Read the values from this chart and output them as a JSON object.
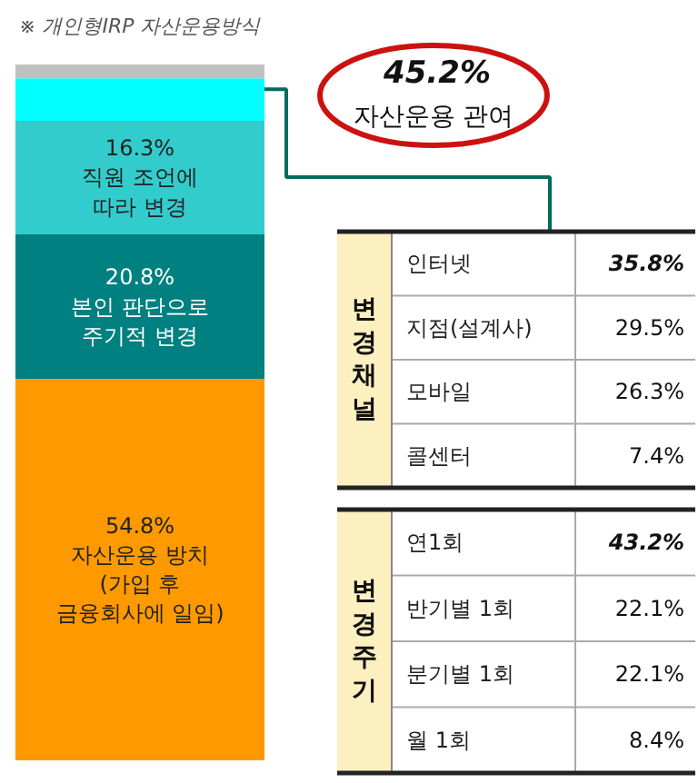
{
  "chart_data": [
    {
      "type": "bar",
      "stacked": true,
      "title": "※ 개인형IRP  자산운용방식",
      "categories": [
        null
      ],
      "series": [
        {
          "name": "자산운용 방치\n(가입 후\n금융회사에 일임)",
          "color": "#ff9900",
          "values": [
            54.8
          ],
          "value_labels": [
            "54.8%"
          ]
        },
        {
          "name": "본인 판단으로\n주기적 변경",
          "color": "#008080",
          "values": [
            20.8
          ],
          "value_labels": [
            "20.8%"
          ]
        },
        {
          "name": "직원 조언에\n따라 변경",
          "color": "#33cccc",
          "values": [
            16.3
          ],
          "value_labels": [
            "16.3%"
          ]
        },
        {
          "color": "#00ffff",
          "values": [
            6.1
          ]
        },
        {
          "color": "#c0c0c0",
          "values": [
            2.0
          ]
        }
      ],
      "annotations": [
        "45.2%\n자산운용 관여"
      ]
    },
    {
      "type": "other",
      "title": "변경채널",
      "categories": [
        "인터넷",
        "지점(설계사)",
        "모바일",
        "콜센터"
      ],
      "values": [
        35.8,
        29.5,
        26.3,
        7.4
      ],
      "value_labels": [
        "35.8%",
        "29.5%",
        "26.3%",
        "7.4%"
      ]
    },
    {
      "type": "other",
      "title": "변경주기",
      "categories": [
        "연1회",
        "반기별 1회",
        "분기별 1회",
        "월 1회"
      ],
      "values": [
        43.2,
        22.1,
        22.1,
        8.4
      ],
      "value_labels": [
        "43.2%",
        "22.1%",
        "22.1%",
        "8.4%"
      ]
    }
  ]
}
